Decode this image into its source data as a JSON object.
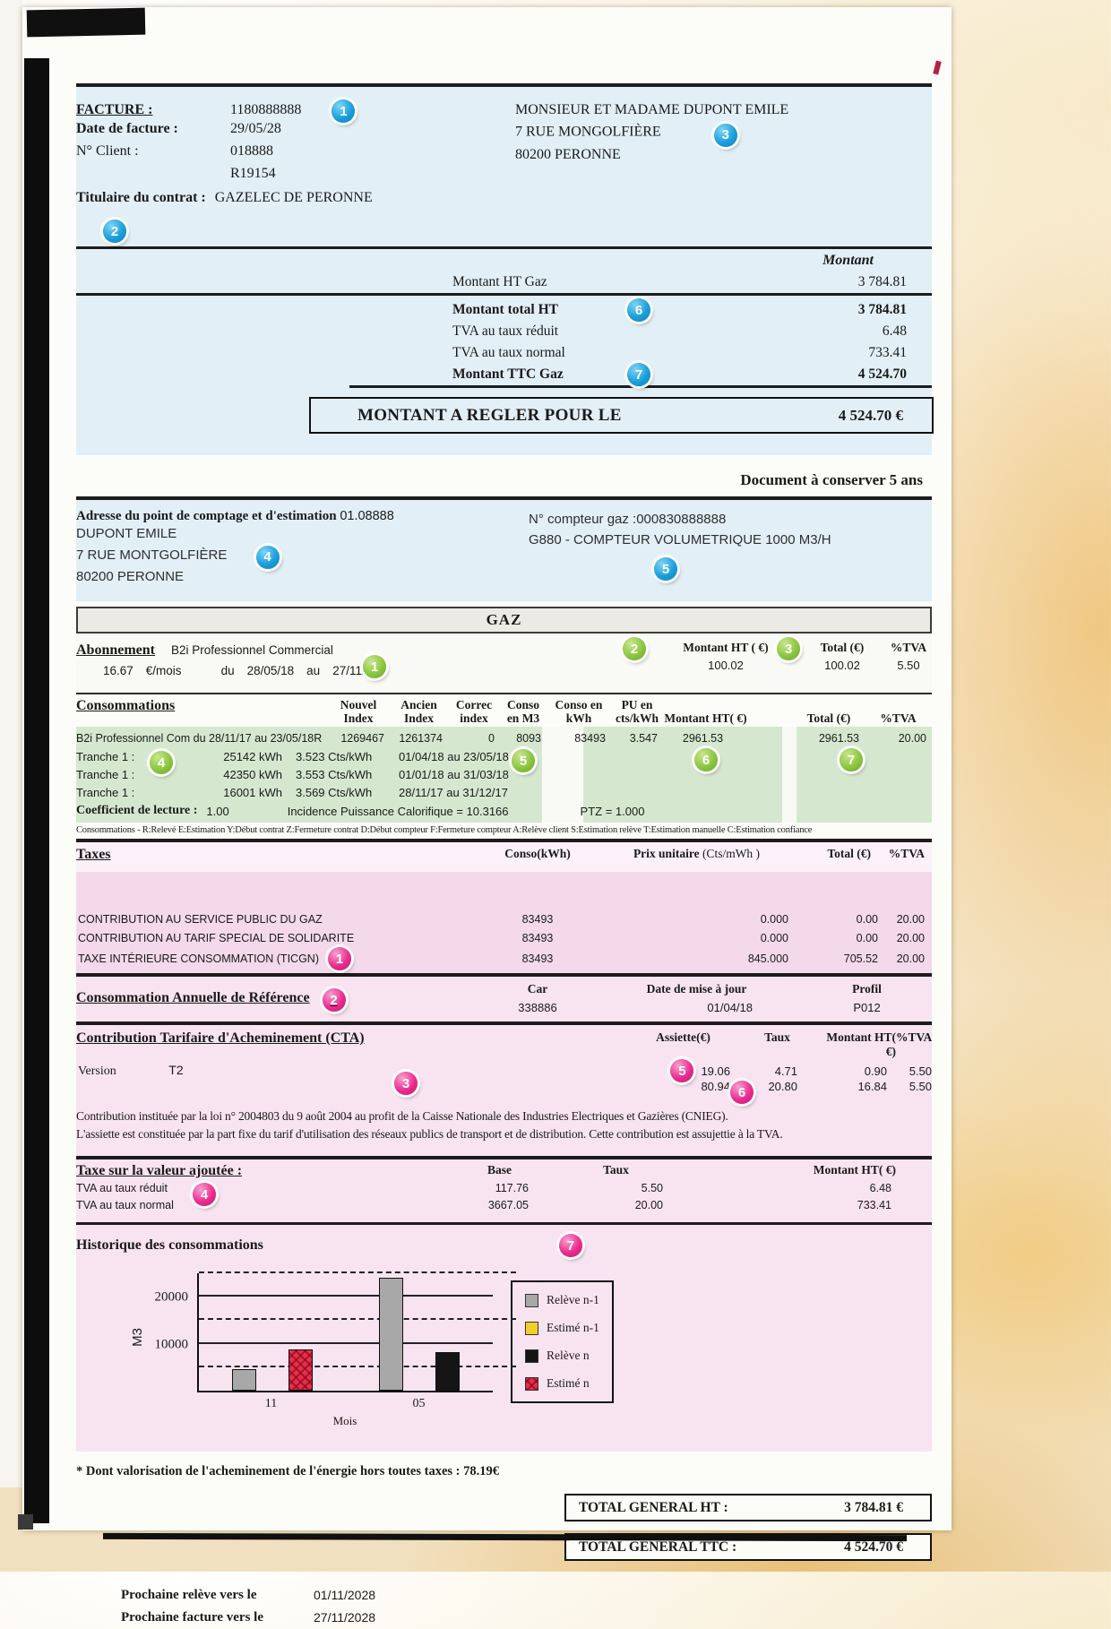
{
  "colors": {
    "badge_blue": "#1a9fdc",
    "badge_green": "#8cc63e",
    "badge_pink": "#ec2c8f",
    "panel_blue": "#e2eff6",
    "row_green": "#d5e8cf",
    "panel_pink": "#f3d9ea"
  },
  "badges": {
    "blue": {
      "facture": "1",
      "titulaire": "2",
      "recipient": "3",
      "address": "4",
      "meter": "5",
      "total_ht": "6",
      "ttc": "7"
    },
    "green": {
      "abonnement": "1",
      "montant_ht": "2",
      "total": "3",
      "tranche": "4",
      "releve": "5",
      "montant": "6",
      "total2": "7"
    },
    "pink": {
      "ticgn": "1",
      "car": "2",
      "cta": "3",
      "tva": "4",
      "assiette": "5",
      "taux": "6",
      "historique": "7"
    }
  },
  "top": {
    "facture_label": "FACTURE :",
    "facture_number": "1180888888",
    "date_label": "Date de facture :",
    "date_value": "29/05/28",
    "client_label": "N° Client  :",
    "client_value": "018888",
    "client_ref": "R19154",
    "titulaire_label": "Titulaire du contrat :",
    "titulaire_value": "GAZELEC DE PERONNE",
    "recipient_line1": "MONSIEUR ET MADAME DUPONT EMILE",
    "recipient_line2": "7 RUE MONGOLFIÈRE",
    "recipient_line3": "80200 PERONNE"
  },
  "amounts": {
    "col_header": "Montant",
    "ht_gaz_label": "Montant HT Gaz",
    "ht_gaz_value": "3 784.81",
    "total_ht_label": "Montant total HT",
    "total_ht_value": "3 784.81",
    "tva_reduit_label": "TVA au taux réduit",
    "tva_reduit_value": "6.48",
    "tva_normal_label": "TVA au taux normal",
    "tva_normal_value": "733.41",
    "ttc_label": "Montant TTC Gaz",
    "ttc_value": "4 524.70",
    "pay_label": "MONTANT A REGLER POUR LE",
    "pay_value": "4 524.70 €"
  },
  "keep_note": "Document à conserver 5 ans",
  "metering": {
    "address_label": "Adresse du point de comptage et d'estimation",
    "address_code": "01.08888",
    "address_line1": "DUPONT EMILE",
    "address_line2": "7 RUE MONTGOLFIÈRE",
    "address_line3": "80200 PERONNE",
    "meter_number": "N° compteur gaz :000830888888",
    "meter_type": "G880 - COMPTEUR VOLUMETRIQUE 1000 M3/H"
  },
  "gaz": {
    "section_title": "GAZ",
    "abonnement": {
      "title": "Abonnement",
      "plan": "B2i Professionnel Commercial",
      "rate": "16.67",
      "rate_unit": "€/mois",
      "du": "du",
      "from": "28/05/18",
      "au": "au",
      "to": "27/11/18",
      "montant_ht_header": "Montant HT ( €)",
      "montant_ht": "100.02",
      "total_header": "Total (€)",
      "total": "100.02",
      "tva_header": "%TVA",
      "tva": "5.50"
    },
    "conso": {
      "title": "Consommations",
      "h_nouvel": "Nouvel Index",
      "h_ancien": "Ancien Index",
      "h_correc": "Correc index",
      "h_conso_m3": "Conso en M3",
      "h_conso_kwh": "Conso en kWh",
      "h_pu": "PU en cts/kWh",
      "h_montant": "Montant HT( €)",
      "h_total": "Total (€)",
      "h_tva": "%TVA",
      "main_label": "B2i Professionnel Com  du 28/11/17  au  23/05/18R",
      "main": {
        "nouvel": "1269467",
        "ancien": "1261374",
        "correc": "0",
        "m3": "8093",
        "kwh": "83493",
        "pu": "3.547",
        "montant": "2961.53",
        "total": "2961.53",
        "tva": "20.00"
      },
      "tranches": [
        {
          "label": "Tranche 1 :",
          "kwh": "25142 kWh",
          "price": "3.523 Cts/kWh",
          "period": "01/04/18  au  23/05/18"
        },
        {
          "label": "Tranche 1 :",
          "kwh": "42350 kWh",
          "price": "3.553 Cts/kWh",
          "period": "01/01/18  au  31/03/18"
        },
        {
          "label": "Tranche 1 :",
          "kwh": "16001 kWh",
          "price": "3.569 Cts/kWh",
          "period": "28/11/17  au  31/12/17"
        }
      ],
      "coeff_label": "Coefficient de lecture :",
      "coeff_value": "1.00",
      "incidence": "Incidence Puissance Calorifique = 10.3166",
      "ptz": "PTZ =  1.000",
      "legend": "Consommations - R:Relevé  E:Estimation   Y:Début contrat   Z:Fermeture contrat   D:Début compteur   F:Fermeture compteur   A:Relève client   S:Estimation relève    T:Estimation manuelle    C:Estimation confiance"
    }
  },
  "taxes": {
    "title": "Taxes",
    "h_conso": "Conso(kWh)",
    "h_prix": "Prix unitaire",
    "h_prix_unit": "(Cts/mWh )",
    "h_total": "Total (€)",
    "h_tva": "%TVA",
    "rows": [
      {
        "label": "CONTRIBUTION AU SERVICE PUBLIC DU GAZ",
        "conso": "83493",
        "prix": "0.000",
        "total": "0.00",
        "tva": "20.00"
      },
      {
        "label": "CONTRIBUTION AU TARIF SPECIAL DE SOLIDARITE",
        "conso": "83493",
        "prix": "0.000",
        "total": "0.00",
        "tva": "20.00"
      },
      {
        "label": "TAXE INTÉRIEURE CONSOMMATION (TICGN)",
        "conso": "83493",
        "prix": "845.000",
        "total": "705.52",
        "tva": "20.00"
      }
    ]
  },
  "car": {
    "title": "Consommation Annuelle de Référence",
    "h_car": "Car",
    "car": "338886",
    "h_date": "Date de mise à jour",
    "date": "01/04/18",
    "h_profil": "Profil",
    "profil": "P012"
  },
  "cta": {
    "title": "Contribution Tarifaire d'Acheminement (CTA)",
    "version_label": "Version",
    "version": "T2",
    "h_assiette": "Assiette(€)",
    "h_taux": "Taux",
    "h_montant": "Montant HT( €)",
    "h_tva": "%TVA",
    "rows": [
      {
        "assiette": "19.06",
        "taux": "4.71",
        "montant": "0.90",
        "tva": "5.50"
      },
      {
        "assiette": "80.94",
        "taux": "20.80",
        "montant": "16.84",
        "tva": "5.50"
      }
    ],
    "note1": "Contribution instituée par la loi n° 2004803 du 9 août 2004 au profit de la Caisse Nationale des Industries Electriques et Gazières (CNIEG).",
    "note2": "L'assiette est constituée par la part fixe du tarif d'utilisation des réseaux publics de transport et de distribution. Cette contribution est assujettie à la TVA."
  },
  "tva": {
    "title": "Taxe sur la valeur ajoutée :",
    "h_base": "Base",
    "h_taux": "Taux",
    "h_montant": "Montant HT( €)",
    "rows": [
      {
        "label": "TVA au taux réduit",
        "base": "117.76",
        "taux": "5.50",
        "montant": "6.48"
      },
      {
        "label": "TVA au taux normal",
        "base": "3667.05",
        "taux": "20.00",
        "montant": "733.41"
      }
    ]
  },
  "history_title": "Historique des consommations",
  "chart_data": {
    "type": "bar",
    "title": "Historique des consommations",
    "xlabel": "Mois",
    "ylabel": "M3",
    "categories": [
      "11",
      "05"
    ],
    "series": [
      {
        "name": "Relève n-1",
        "color": "#a8a8a8",
        "values": [
          4500,
          24000
        ]
      },
      {
        "name": "Estimé n-1",
        "color": "#f2ce2c",
        "values": [
          null,
          null
        ]
      },
      {
        "name": "Relève n",
        "color": "#151515",
        "values": [
          null,
          8200
        ]
      },
      {
        "name": "Estimé n",
        "color": "#e5304a",
        "pattern": "crosshatch",
        "values": [
          8700,
          null
        ]
      }
    ],
    "ylim": [
      0,
      25000
    ],
    "yticks": [
      10000,
      20000
    ],
    "dashed_gridlines": [
      5000,
      15000,
      25000
    ],
    "grid": true,
    "legend_position": "right"
  },
  "footer": {
    "note": "* Dont valorisation de l'acheminement de l'énergie hors toutes taxes : 78.19€",
    "total_ht_label": "TOTAL GENERAL HT :",
    "total_ht_value": "3 784.81  €",
    "total_ttc_label": "TOTAL GENERAL TTC :",
    "total_ttc_value": "4 524.70  €",
    "next_reading_label": "Prochaine relève vers le",
    "next_reading_value": "01/11/2028",
    "next_invoice_label": "Prochaine facture vers le",
    "next_invoice_value": "27/11/2028"
  }
}
